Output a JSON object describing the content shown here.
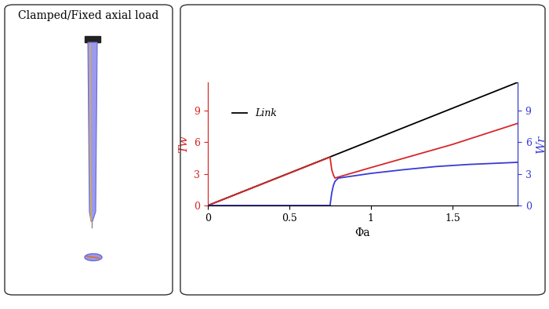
{
  "chart_data": [
    {
      "type": "diagram",
      "title": "Clamped/Fixed axial load"
    },
    {
      "type": "line",
      "x_label": "Φa",
      "y_label": "Tw",
      "y2_label": "Wr",
      "xlim": [
        0,
        1.9
      ],
      "xticks": [
        0,
        0.5,
        1,
        1.5
      ],
      "ylim": [
        0,
        11.7
      ],
      "yticks": [
        0,
        3,
        6,
        9
      ],
      "y2lim": [
        0,
        11.7
      ],
      "y2ticks": [
        0,
        3,
        6,
        9
      ],
      "legend": "upper left",
      "series": [
        {
          "name": "Link",
          "color": "#000000",
          "x": [
            0,
            1.9
          ],
          "values": [
            0,
            11.7
          ]
        },
        {
          "color": "#d62728",
          "x": [
            0,
            0.75,
            0.752,
            0.76,
            0.77,
            0.78,
            0.8,
            1.0,
            1.5,
            1.9
          ],
          "values": [
            0,
            4.6,
            4.3,
            3.4,
            2.9,
            2.6,
            2.7,
            3.6,
            5.8,
            7.8
          ]
        },
        {
          "color": "#3a3ad6",
          "axis": "y2",
          "x": [
            0,
            0.75,
            0.752,
            0.76,
            0.77,
            0.78,
            0.8,
            1.0,
            1.2,
            1.4,
            1.6,
            1.9
          ],
          "values": [
            0,
            0,
            0.3,
            1.2,
            1.9,
            2.3,
            2.6,
            3.05,
            3.4,
            3.7,
            3.9,
            4.1
          ]
        }
      ]
    }
  ]
}
